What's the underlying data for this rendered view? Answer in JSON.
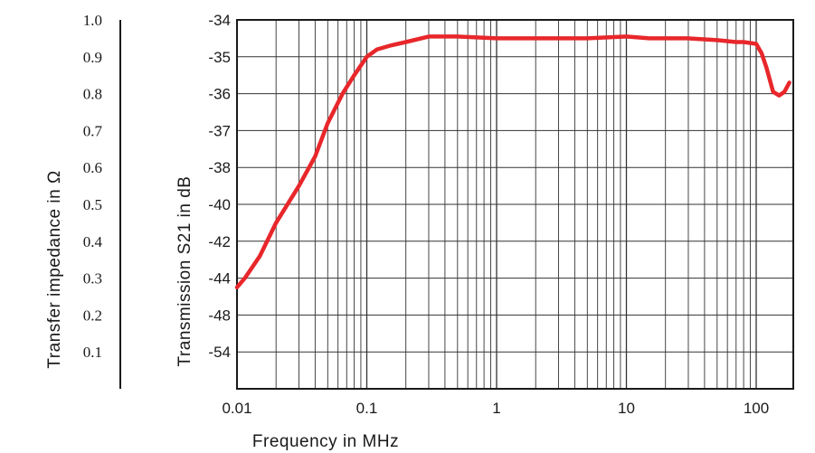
{
  "chart_data": {
    "type": "line",
    "title": "",
    "xlabel": "Frequency in MHz",
    "ylabel": "Transmission S21 in dB",
    "y2label": "Transfer impedance in Ω",
    "x_scale": "log",
    "xlim": [
      0.01,
      180
    ],
    "x_ticks": [
      "0.01",
      "0.1",
      "1",
      "10",
      "100"
    ],
    "y_ticks": [
      "-34",
      "-35",
      "-36",
      "-37",
      "-38",
      "-40",
      "-42",
      "-44",
      "-48",
      "-54"
    ],
    "left_ticks": [
      "1.0",
      "0.9",
      "0.8",
      "0.7",
      "0.6",
      "0.5",
      "0.4",
      "0.3",
      "0.2",
      "0.1"
    ],
    "grid": true,
    "line_color": "#e8272b",
    "series": [
      {
        "x": [
          0.01,
          0.0115,
          0.015,
          0.02,
          0.03,
          0.04,
          0.05,
          0.065,
          0.08,
          0.1,
          0.12,
          0.15,
          0.2,
          0.3,
          0.5,
          1,
          2,
          5,
          10,
          15,
          20,
          30,
          50,
          70,
          80,
          100,
          110,
          120,
          135,
          150,
          165,
          180
        ],
        "y": [
          -45.0,
          -44.0,
          -42.8,
          -41.0,
          -39.0,
          -37.7,
          -36.8,
          -36.0,
          -35.5,
          -35.0,
          -34.8,
          -34.7,
          -34.6,
          -34.45,
          -34.45,
          -34.5,
          -34.5,
          -34.5,
          -34.45,
          -34.5,
          -34.5,
          -34.5,
          -34.55,
          -34.6,
          -34.6,
          -34.65,
          -34.9,
          -35.3,
          -35.95,
          -36.05,
          -35.95,
          -35.7
        ]
      }
    ]
  }
}
